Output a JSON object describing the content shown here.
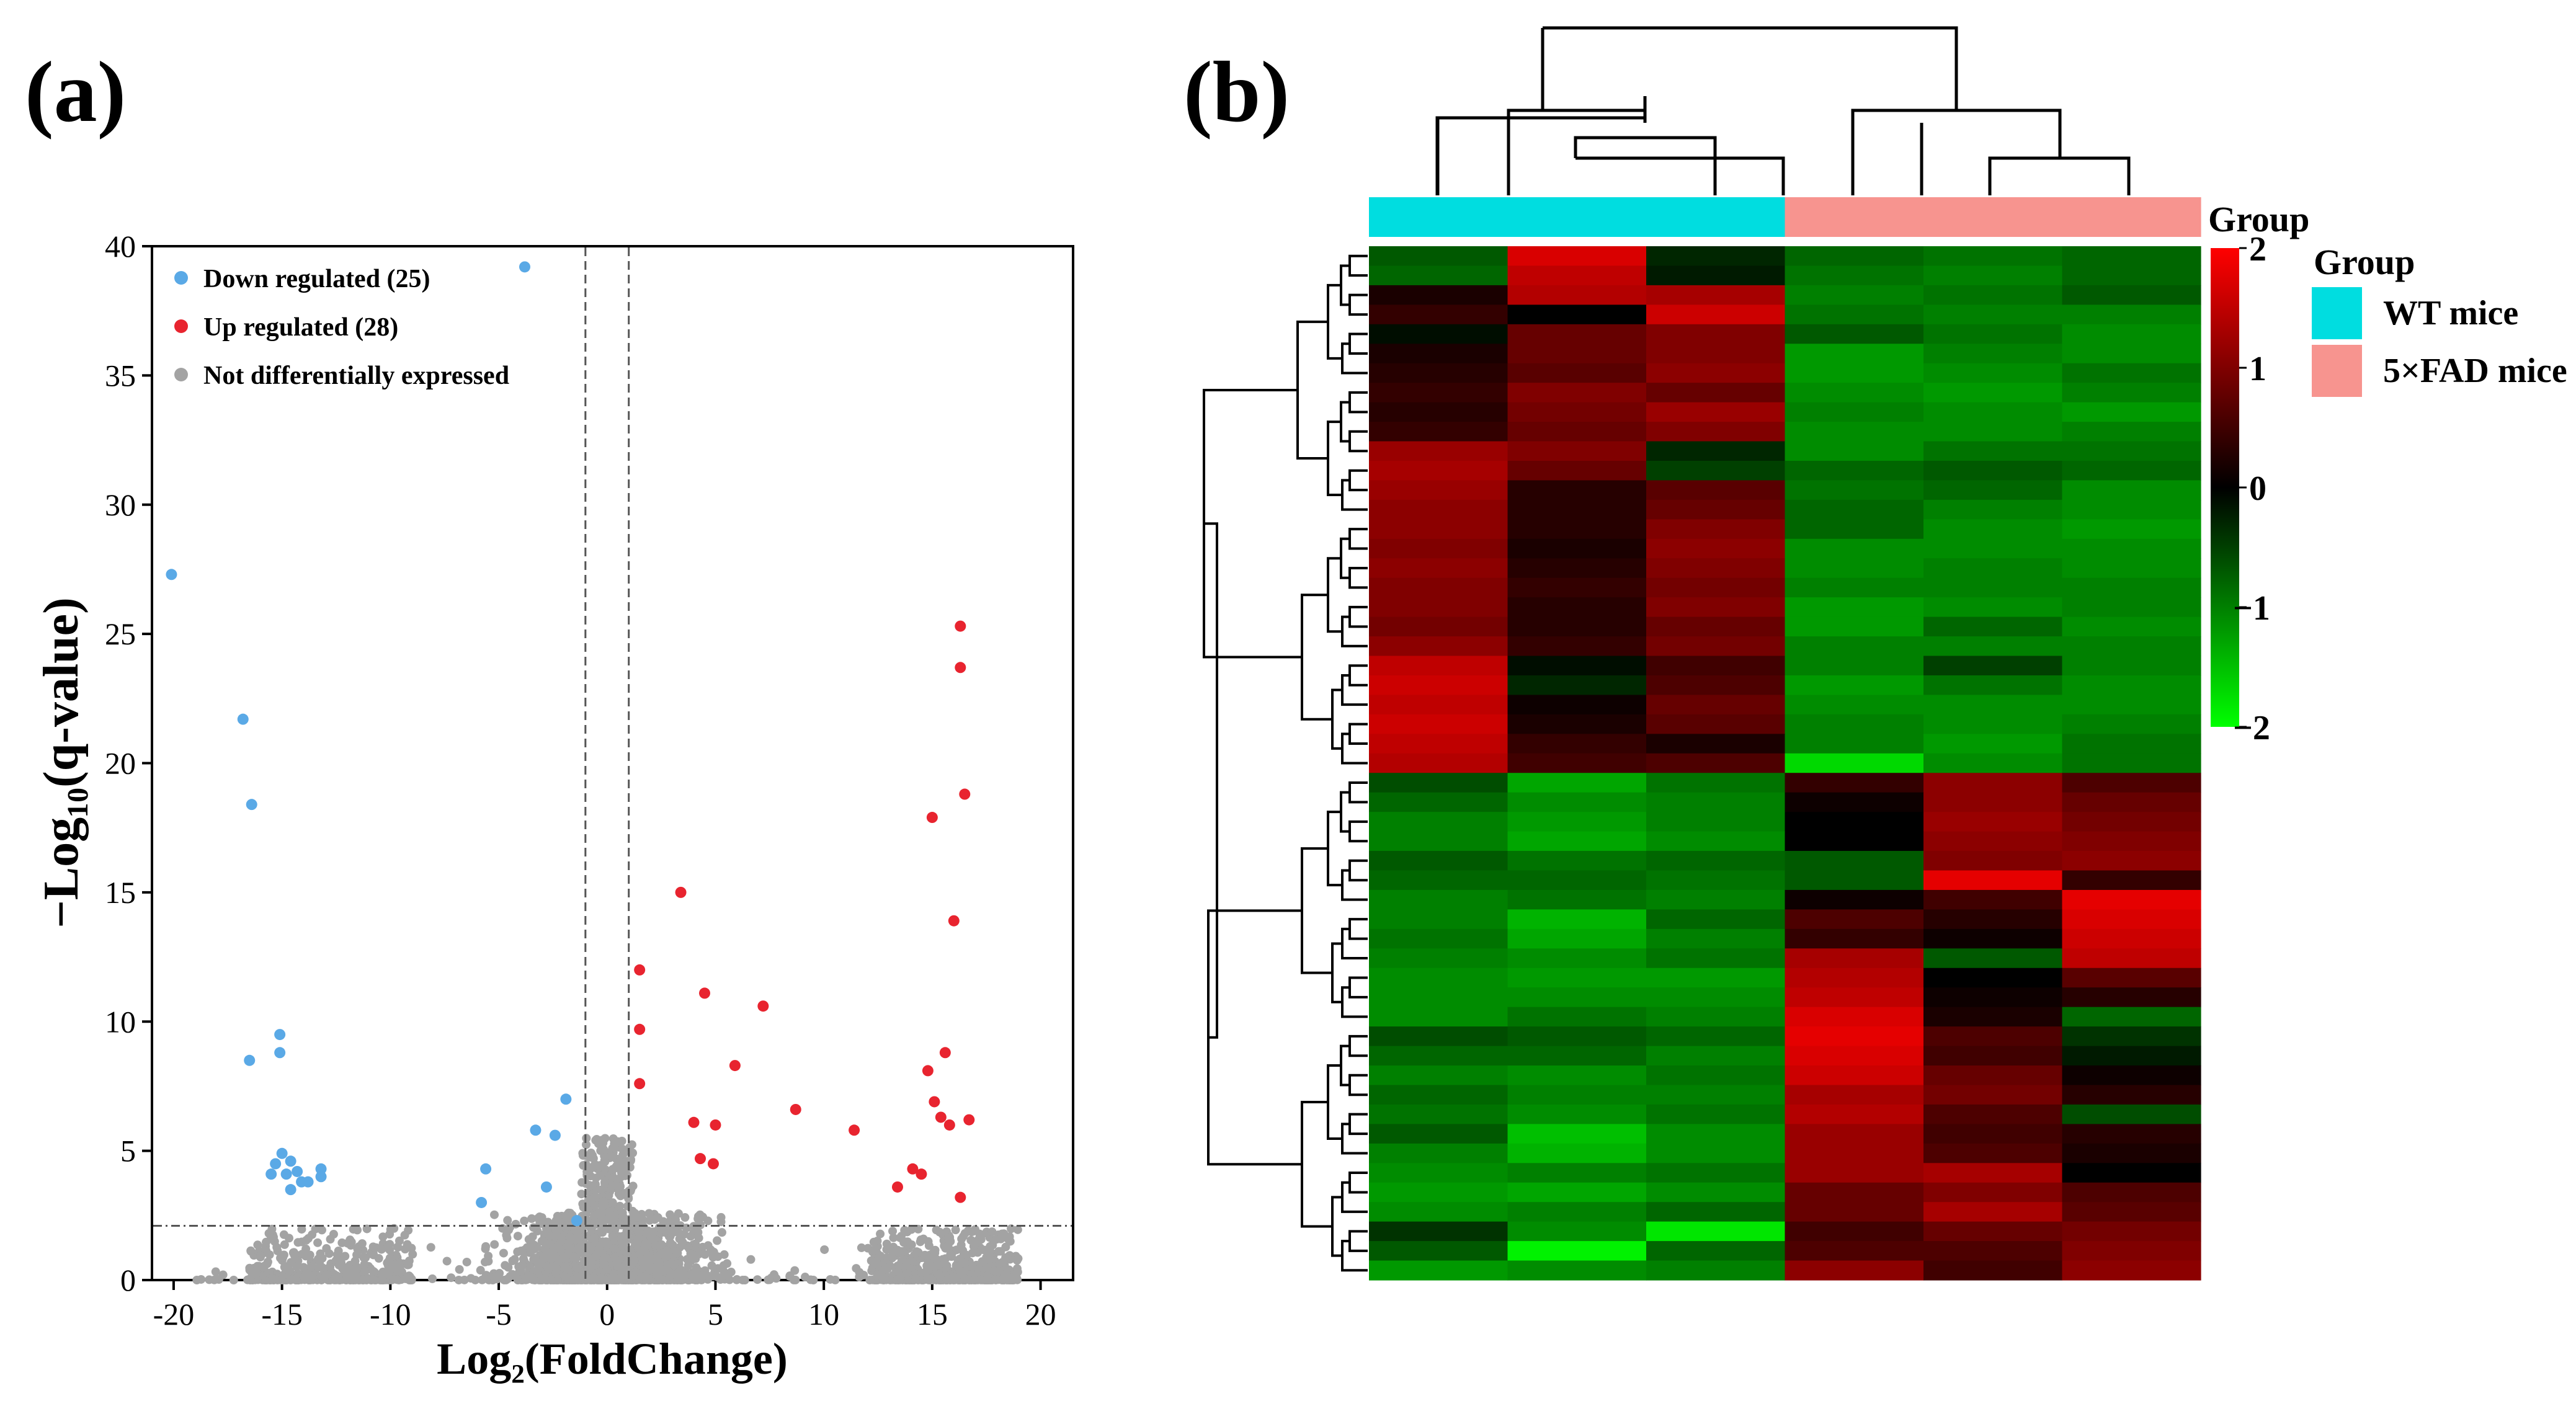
{
  "panels": {
    "a": {
      "label": "(a)"
    },
    "b": {
      "label": "(b)"
    }
  },
  "chart_data": [
    {
      "type": "scatter",
      "chart": "volcano",
      "title": "",
      "xlabel": "Log₂(FoldChange)",
      "ylabel": "−Log₁₀(q-value)",
      "xlim": [
        -21,
        21.5
      ],
      "ylim": [
        0,
        40
      ],
      "xticks": [
        -20,
        -15,
        -10,
        -5,
        0,
        5,
        10,
        15,
        20
      ],
      "yticks": [
        0,
        5,
        10,
        15,
        20,
        25,
        30,
        35,
        40
      ],
      "thresholds": {
        "log2fc": [
          -1,
          1
        ],
        "neg_log10_q": 2.1
      },
      "legend": {
        "position": "top-left",
        "entries": [
          {
            "key": "down",
            "label": "Down regulated (25)",
            "color": "#5aa9e6"
          },
          {
            "key": "up",
            "label": "Up regulated (28)",
            "color": "#e8242f"
          },
          {
            "key": "ns",
            "label": "Not differentially expressed",
            "color": "#a3a3a3"
          }
        ]
      },
      "series": [
        {
          "name": "Down regulated (25)",
          "key": "down",
          "color": "#5aa9e6",
          "points": [
            [
              -3.8,
              39.2
            ],
            [
              -20.1,
              27.3
            ],
            [
              -16.8,
              21.7
            ],
            [
              -16.4,
              18.4
            ],
            [
              -15.1,
              9.5
            ],
            [
              -15.1,
              8.8
            ],
            [
              -16.5,
              8.5
            ],
            [
              -15.0,
              4.9
            ],
            [
              -14.6,
              4.6
            ],
            [
              -15.3,
              4.5
            ],
            [
              -15.5,
              4.1
            ],
            [
              -14.8,
              4.1
            ],
            [
              -14.3,
              4.2
            ],
            [
              -14.1,
              3.8
            ],
            [
              -13.2,
              4.3
            ],
            [
              -13.2,
              4.0
            ],
            [
              -13.8,
              3.8
            ],
            [
              -14.6,
              3.5
            ],
            [
              -5.6,
              4.3
            ],
            [
              -5.8,
              3.0
            ],
            [
              -3.3,
              5.8
            ],
            [
              -2.4,
              5.6
            ],
            [
              -1.9,
              7.0
            ],
            [
              -2.8,
              3.6
            ],
            [
              -1.4,
              2.3
            ]
          ]
        },
        {
          "name": "Up regulated (28)",
          "key": "up",
          "color": "#e8242f",
          "points": [
            [
              16.3,
              25.3
            ],
            [
              16.3,
              23.7
            ],
            [
              16.5,
              18.8
            ],
            [
              15.0,
              17.9
            ],
            [
              16.0,
              13.9
            ],
            [
              3.4,
              15.0
            ],
            [
              1.5,
              12.0
            ],
            [
              4.5,
              11.1
            ],
            [
              7.2,
              10.6
            ],
            [
              1.5,
              9.7
            ],
            [
              5.9,
              8.3
            ],
            [
              15.6,
              8.8
            ],
            [
              14.8,
              8.1
            ],
            [
              1.5,
              7.6
            ],
            [
              8.7,
              6.6
            ],
            [
              15.1,
              6.9
            ],
            [
              15.4,
              6.3
            ],
            [
              16.7,
              6.2
            ],
            [
              15.8,
              6.0
            ],
            [
              4.0,
              6.1
            ],
            [
              5.0,
              6.0
            ],
            [
              11.4,
              5.8
            ],
            [
              4.3,
              4.7
            ],
            [
              4.9,
              4.5
            ],
            [
              14.1,
              4.3
            ],
            [
              14.5,
              4.1
            ],
            [
              13.4,
              3.6
            ],
            [
              16.3,
              3.2
            ]
          ]
        },
        {
          "name": "Not differentially expressed",
          "key": "ns",
          "color": "#a3a3a3",
          "points": "dense cloud of genes clustered near q-value 0, log2 fold change between -19 and 19"
        }
      ]
    },
    {
      "type": "heatmap",
      "chart": "clustered heatmap",
      "title": "",
      "rows": 53,
      "columns": 6,
      "column_groups": [
        "WT mice",
        "WT mice",
        "WT mice",
        "5×FAD mice",
        "5×FAD mice",
        "5×FAD mice"
      ],
      "colorbar": {
        "title": "Group",
        "min": -2,
        "max": 2,
        "ticks": [
          "2",
          "1",
          "0",
          "−1",
          "−2"
        ],
        "low_color": "#00ff00",
        "mid_color": "#000000",
        "high_color": "#ff0000"
      },
      "legend": {
        "title": "Group",
        "position": "right",
        "entries": [
          {
            "label": "WT mice",
            "color": "#00dde0"
          },
          {
            "label": "5×FAD mice",
            "color": "#f7948f"
          }
        ]
      },
      "values": [
        [
          -0.7,
          1.7,
          -0.3,
          -0.8,
          -0.9,
          -0.8
        ],
        [
          -0.8,
          1.5,
          -0.2,
          -0.9,
          -1.0,
          -0.8
        ],
        [
          0.2,
          1.4,
          1.3,
          -1.0,
          -0.9,
          -0.7
        ],
        [
          0.4,
          0.0,
          1.6,
          -0.9,
          -1.0,
          -1.0
        ],
        [
          -0.1,
          0.8,
          1.0,
          -0.7,
          -0.9,
          -1.1
        ],
        [
          0.2,
          0.8,
          1.0,
          -1.2,
          -1.0,
          -1.1
        ],
        [
          0.3,
          0.7,
          1.1,
          -1.2,
          -1.1,
          -0.9
        ],
        [
          0.4,
          1.0,
          0.8,
          -1.1,
          -1.2,
          -1.0
        ],
        [
          0.3,
          0.9,
          1.2,
          -1.0,
          -1.1,
          -1.2
        ],
        [
          0.4,
          0.8,
          1.0,
          -1.1,
          -1.1,
          -1.0
        ],
        [
          1.2,
          1.0,
          -0.3,
          -1.1,
          -0.9,
          -0.9
        ],
        [
          1.3,
          0.8,
          -0.5,
          -0.8,
          -0.7,
          -0.8
        ],
        [
          1.2,
          0.3,
          0.7,
          -0.9,
          -0.8,
          -1.1
        ],
        [
          1.1,
          0.3,
          0.8,
          -0.8,
          -1.0,
          -1.1
        ],
        [
          1.1,
          0.3,
          1.0,
          -0.8,
          -1.1,
          -1.2
        ],
        [
          1.0,
          0.2,
          1.1,
          -1.1,
          -1.1,
          -1.1
        ],
        [
          1.1,
          0.3,
          1.0,
          -1.1,
          -1.0,
          -1.1
        ],
        [
          1.0,
          0.4,
          0.9,
          -1.0,
          -1.0,
          -1.0
        ],
        [
          1.0,
          0.3,
          1.0,
          -1.2,
          -1.1,
          -1.0
        ],
        [
          0.9,
          0.3,
          0.8,
          -1.2,
          -0.8,
          -1.1
        ],
        [
          1.1,
          0.4,
          0.9,
          -1.0,
          -1.0,
          -1.0
        ],
        [
          1.5,
          -0.1,
          0.5,
          -1.0,
          -0.5,
          -1.0
        ],
        [
          1.6,
          -0.3,
          0.6,
          -1.2,
          -0.9,
          -1.1
        ],
        [
          1.5,
          0.1,
          0.8,
          -1.1,
          -1.1,
          -1.1
        ],
        [
          1.6,
          0.2,
          0.7,
          -1.0,
          -1.1,
          -1.0
        ],
        [
          1.5,
          0.4,
          0.2,
          -1.0,
          -1.2,
          -0.9
        ],
        [
          1.4,
          0.5,
          0.6,
          -1.7,
          -1.1,
          -0.9
        ],
        [
          -0.6,
          -1.3,
          -0.9,
          0.4,
          1.1,
          0.6
        ],
        [
          -0.8,
          -1.1,
          -1.0,
          0.1,
          1.1,
          0.8
        ],
        [
          -1.0,
          -1.2,
          -1.0,
          0.0,
          1.2,
          0.9
        ],
        [
          -1.0,
          -1.3,
          -1.1,
          0.0,
          1.1,
          1.0
        ],
        [
          -0.7,
          -0.9,
          -0.8,
          -0.7,
          1.0,
          1.1
        ],
        [
          -0.8,
          -0.8,
          -0.9,
          -0.7,
          1.8,
          0.4
        ],
        [
          -1.0,
          -0.9,
          -1.0,
          0.1,
          0.5,
          1.8
        ],
        [
          -1.0,
          -1.4,
          -0.8,
          0.6,
          0.3,
          1.7
        ],
        [
          -0.9,
          -1.3,
          -1.0,
          0.4,
          0.1,
          1.6
        ],
        [
          -1.0,
          -1.1,
          -0.9,
          1.3,
          -0.7,
          1.5
        ],
        [
          -1.1,
          -1.2,
          -1.2,
          1.4,
          0.0,
          0.7
        ],
        [
          -1.1,
          -1.1,
          -1.1,
          1.5,
          0.1,
          0.3
        ],
        [
          -1.1,
          -0.9,
          -1.0,
          1.7,
          0.2,
          -0.8
        ],
        [
          -0.6,
          -0.7,
          -0.8,
          1.8,
          0.6,
          -0.4
        ],
        [
          -0.8,
          -0.8,
          -1.0,
          1.7,
          0.5,
          -0.2
        ],
        [
          -1.0,
          -1.1,
          -0.9,
          1.6,
          0.8,
          0.1
        ],
        [
          -0.8,
          -1.0,
          -1.0,
          1.3,
          0.9,
          0.3
        ],
        [
          -0.9,
          -1.1,
          -0.9,
          1.4,
          0.6,
          -0.6
        ],
        [
          -0.7,
          -1.5,
          -1.1,
          1.2,
          0.5,
          0.3
        ],
        [
          -1.0,
          -1.4,
          -1.1,
          1.2,
          0.6,
          0.2
        ],
        [
          -1.1,
          -1.0,
          -0.9,
          1.2,
          1.3,
          0.0
        ],
        [
          -1.2,
          -1.3,
          -1.1,
          0.8,
          1.0,
          0.6
        ],
        [
          -1.1,
          -1.0,
          -0.8,
          0.8,
          1.3,
          0.7
        ],
        [
          -0.4,
          -1.1,
          -1.8,
          0.5,
          0.8,
          0.9
        ],
        [
          -0.7,
          -1.9,
          -0.8,
          0.6,
          0.6,
          1.0
        ],
        [
          -1.2,
          -1.1,
          -1.0,
          1.1,
          0.5,
          1.1
        ]
      ]
    }
  ]
}
